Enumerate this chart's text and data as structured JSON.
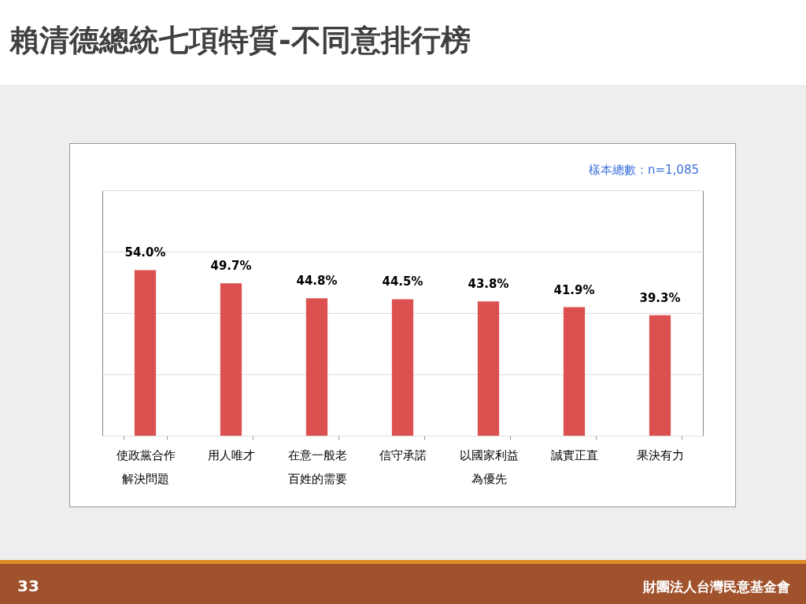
{
  "chart_data": {
    "type": "bar",
    "title": "賴清德總統七項特質-不同意排行榜",
    "categories": [
      "使政黨合作解決問題",
      "用人唯才",
      "在意一般老百姓的需要",
      "信守承諾",
      "以國家利益為優先",
      "誠實正直",
      "果決有力"
    ],
    "values": [
      54.0,
      49.7,
      44.8,
      44.5,
      43.8,
      41.9,
      39.3
    ],
    "color": "#dd5050",
    "value_labels": [
      "54.0%",
      "49.7%",
      "44.8%",
      "44.5%",
      "43.8%",
      "41.9%",
      "39.3%"
    ],
    "ylim": [
      0,
      80
    ],
    "yticks": [
      {
        "value": 0,
        "label": null
      },
      {
        "value": 20,
        "label": null
      },
      {
        "value": 40,
        "label": null
      },
      {
        "value": 60,
        "label": null
      },
      {
        "value": 80,
        "label": null
      }
    ],
    "grid": "y",
    "tick_labels": "x",
    "annotations": [
      "樣本總數：n=1,085",
      "33",
      "財團法人台灣民意基金會"
    ]
  }
}
